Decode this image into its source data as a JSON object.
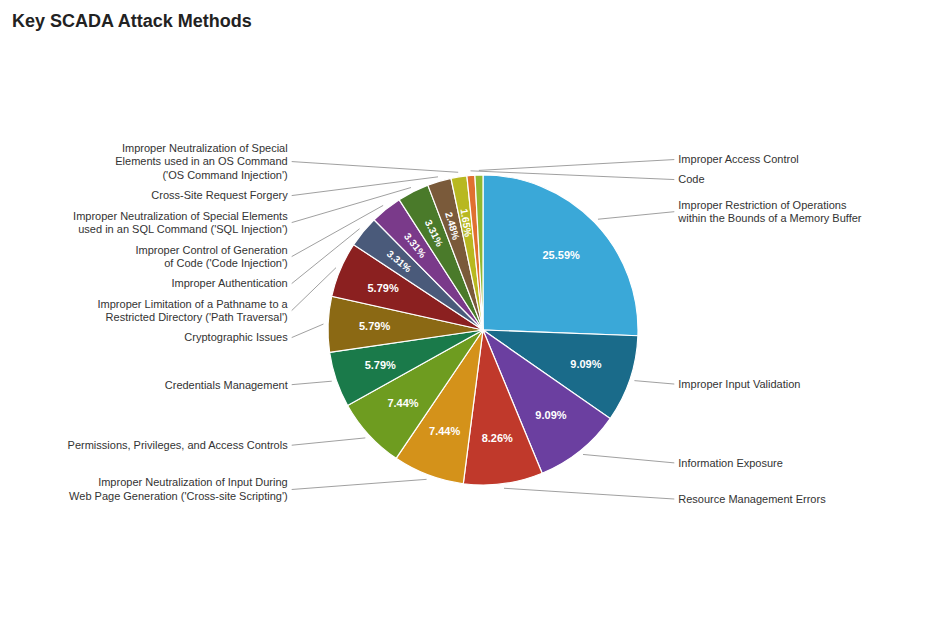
{
  "chart_data": {
    "type": "pie",
    "title": "Key SCADA Attack Methods",
    "categories": [
      "Improper Restriction of Operations\nwithin the Bounds of a Memory Buffer",
      "Improper Input Validation",
      "Information Exposure",
      "Resource Management Errors",
      "Improper Neutralization of Input During\nWeb Page Generation ('Cross-site Scripting')",
      "Permissions, Privileges, and Access Controls",
      "Credentials Management",
      "Cryptographic Issues",
      "Improper Limitation of a Pathname to a\nRestricted Directory ('Path Traversal')",
      "Improper Authentication",
      "Improper Control of Generation\nof Code ('Code Injection')",
      "Improper Neutralization of Special Elements\nused in an SQL Command ('SQL Injection')",
      "Cross-Site Request Forgery",
      "Improper Neutralization of Special\nElements used in an OS Command\n('OS Command Injection')",
      "Code",
      "Improper Access Control"
    ],
    "values": [
      25.59,
      9.09,
      9.09,
      8.26,
      7.44,
      7.44,
      5.79,
      5.79,
      5.79,
      3.31,
      3.31,
      3.31,
      2.48,
      1.65,
      0.83,
      0.83
    ],
    "colors": [
      "#3aa8d8",
      "#1a6b8a",
      "#6b3fa0",
      "#c0392b",
      "#d4921a",
      "#6e9c20",
      "#1a7a4a",
      "#8b6914",
      "#8b2020",
      "#4a5a7a",
      "#7a3a8a",
      "#4a7a2a",
      "#7a5a3a",
      "#b8b820",
      "#e07030",
      "#90b830"
    ],
    "data_labels": true,
    "value_labels": [
      "25.59%",
      "9.09%",
      "9.09%",
      "8.26%",
      "7.44%",
      "7.44%",
      "5.79%",
      "5.79%",
      "5.79%",
      "3.31%",
      "3.31%",
      "3.31%",
      "2.48%",
      "1.65%",
      null,
      null
    ]
  }
}
